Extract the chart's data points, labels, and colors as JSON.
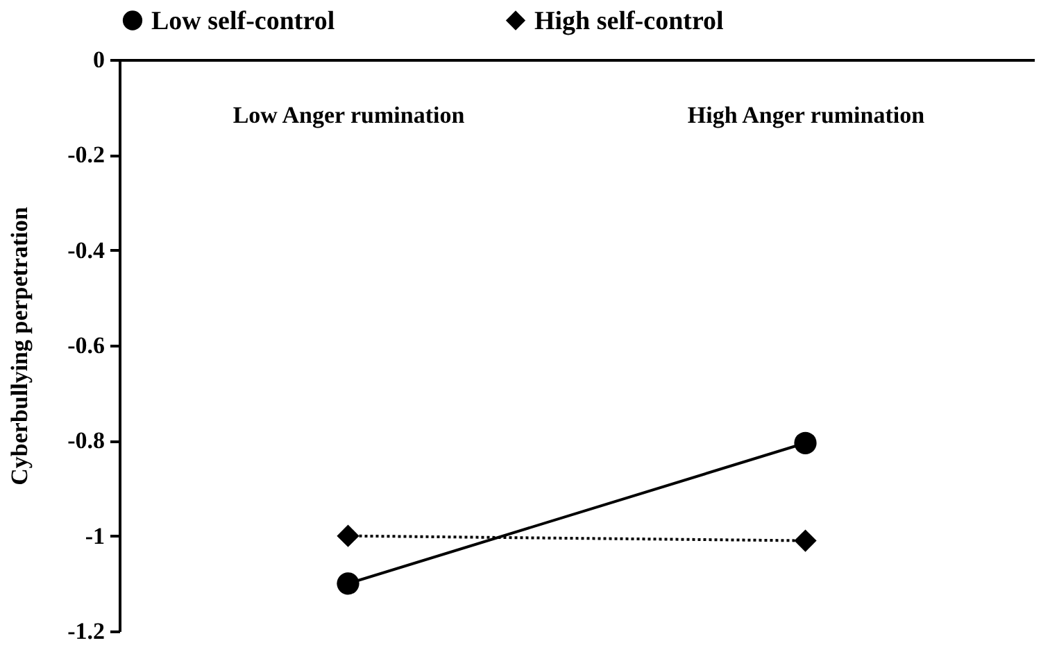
{
  "chart_data": {
    "type": "line",
    "ylabel": "Cyberbullying perpetration",
    "categories": [
      "Low Anger rumination",
      "High Anger rumination"
    ],
    "series": [
      {
        "name": "Low self-control",
        "color": "#000000",
        "values": [
          -1.1,
          -0.805
        ],
        "marker": "circle",
        "line_style": "solid"
      },
      {
        "name": "High self-control",
        "color": "#000000",
        "values": [
          -1.0,
          -1.01
        ],
        "marker": "diamond",
        "line_style": "dotted"
      }
    ],
    "ylim": [
      -1.2,
      0
    ],
    "yticks": [
      0,
      -0.2,
      -0.4,
      -0.6,
      -0.8,
      -1,
      -1.2
    ],
    "grid": false,
    "legend": "top"
  }
}
